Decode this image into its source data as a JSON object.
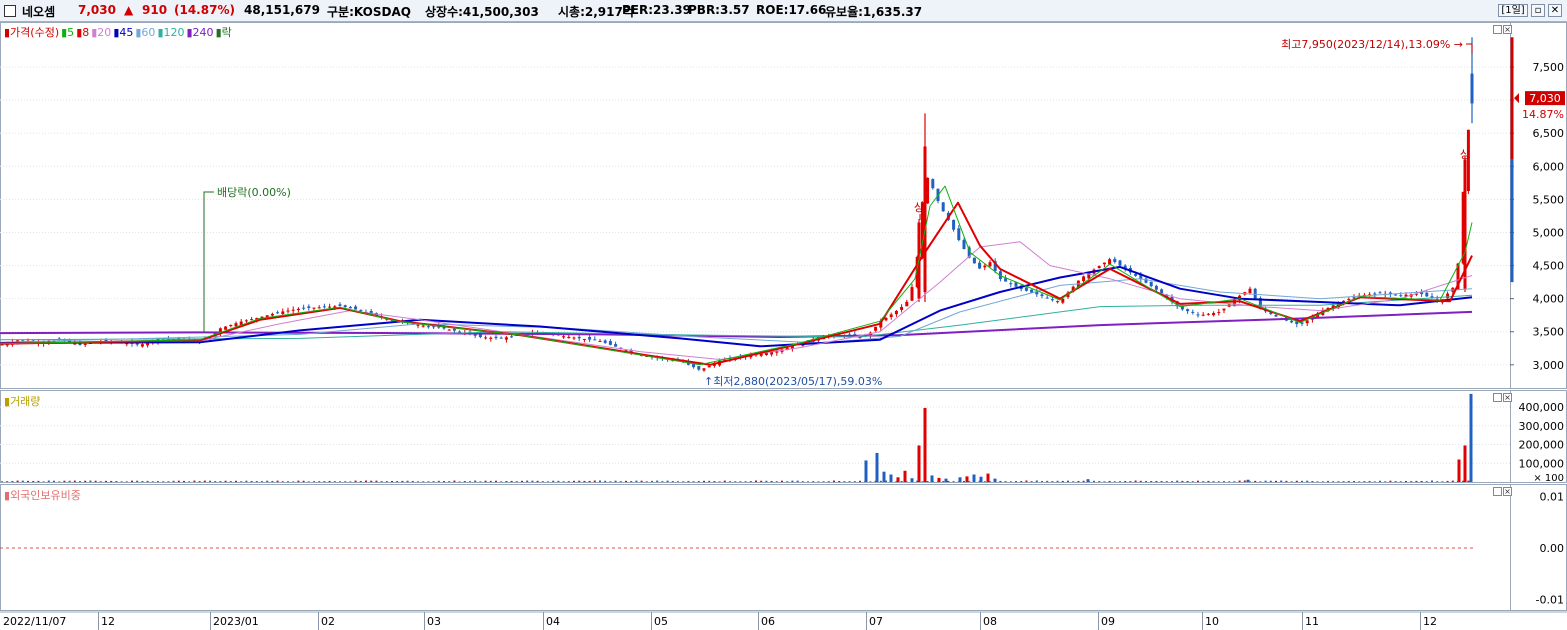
{
  "header": {
    "name": "네오셈",
    "price": "7,030",
    "change_arrow": "▲",
    "change": "910",
    "change_pct": "(14.87%)",
    "volume": "48,151,679",
    "market": "구분:KOSDAQ",
    "shares": "상장수:41,500,303",
    "mcap": "시총:2,917억",
    "per": "PER:23.39",
    "pbr": "PBR:3.57",
    "roe": "ROE:17.66",
    "float": "유보율:1,635.37",
    "period_button": "[1일]",
    "window_buttons": [
      "▫",
      "✕"
    ]
  },
  "price_panel": {
    "legend": [
      {
        "text": "가격(수정)",
        "color": "#d40000"
      },
      {
        "text": "5",
        "color": "#10b010"
      },
      {
        "text": "8",
        "color": "#e00000"
      },
      {
        "text": "20",
        "color": "#d080d0"
      },
      {
        "text": "45",
        "color": "#0000c0"
      },
      {
        "text": "60",
        "color": "#70a8d8"
      },
      {
        "text": "120",
        "color": "#30b0a0"
      },
      {
        "text": "240",
        "color": "#8020c0"
      },
      {
        "text": "락",
        "color": "#207020"
      }
    ],
    "annotations": {
      "high": "최고7,950(2023/12/14),13.09%",
      "low": "최저2,880(2023/05/17),59.03%",
      "dividend": "배당락(0.00%)",
      "upper_limit_1": "상",
      "upper_limit_2": "상"
    },
    "current_price_tag": "7,030",
    "current_pct_tag": "14.87%"
  },
  "volume_panel": {
    "legend": "거래량",
    "unit": "× 100"
  },
  "foreign_panel": {
    "legend": "외국인보유비중"
  },
  "colors": {
    "up": "#e00000",
    "down": "#2060c0",
    "bg": "#ffffff"
  },
  "chart_data": [
    {
      "type": "line",
      "title": "",
      "x_ticks": [
        "2022/11/07",
        "12",
        "2023/01",
        "02",
        "03",
        "04",
        "05",
        "06",
        "07",
        "08",
        "09",
        "10",
        "11",
        "12"
      ],
      "y_ticks": [
        "3,000",
        "3,500",
        "4,000",
        "4,500",
        "5,000",
        "5,500",
        "6,000",
        "6,500",
        "7,000",
        "7,500"
      ],
      "ylim": [
        2650,
        8150
      ],
      "series": [
        {
          "name": "가격(수정)",
          "anchors": [
            [
              0,
              3300
            ],
            [
              20,
              3380
            ],
            [
              40,
              3340
            ],
            [
              60,
              3380
            ],
            [
              80,
              3300
            ],
            [
              100,
              3360
            ],
            [
              120,
              3340
            ],
            [
              140,
              3300
            ],
            [
              160,
              3400
            ],
            [
              180,
              3380
            ],
            [
              200,
              3360
            ],
            [
              210,
              3420
            ],
            [
              220,
              3550
            ],
            [
              240,
              3650
            ],
            [
              260,
              3720
            ],
            [
              280,
              3800
            ],
            [
              300,
              3850
            ],
            [
              320,
              3870
            ],
            [
              340,
              3890
            ],
            [
              360,
              3820
            ],
            [
              380,
              3720
            ],
            [
              400,
              3650
            ],
            [
              420,
              3600
            ],
            [
              440,
              3560
            ],
            [
              460,
              3500
            ],
            [
              480,
              3420
            ],
            [
              500,
              3400
            ],
            [
              520,
              3450
            ],
            [
              540,
              3500
            ],
            [
              560,
              3440
            ],
            [
              580,
              3400
            ],
            [
              600,
              3360
            ],
            [
              620,
              3250
            ],
            [
              640,
              3150
            ],
            [
              660,
              3100
            ],
            [
              680,
              3060
            ],
            [
              700,
              2920
            ],
            [
              720,
              3060
            ],
            [
              740,
              3120
            ],
            [
              760,
              3170
            ],
            [
              780,
              3220
            ],
            [
              800,
              3330
            ],
            [
              820,
              3420
            ],
            [
              840,
              3450
            ],
            [
              860,
              3420
            ],
            [
              870,
              3480
            ],
            [
              880,
              3650
            ],
            [
              900,
              3850
            ],
            [
              910,
              4000
            ],
            [
              918,
              4700
            ],
            [
              925,
              5900
            ],
            [
              932,
              5700
            ],
            [
              940,
              5400
            ],
            [
              950,
              5150
            ],
            [
              960,
              4850
            ],
            [
              970,
              4600
            ],
            [
              980,
              4450
            ],
            [
              990,
              4550
            ],
            [
              1000,
              4300
            ],
            [
              1020,
              4150
            ],
            [
              1040,
              4050
            ],
            [
              1060,
              3950
            ],
            [
              1080,
              4300
            ],
            [
              1100,
              4500
            ],
            [
              1110,
              4600
            ],
            [
              1120,
              4500
            ],
            [
              1140,
              4300
            ],
            [
              1160,
              4100
            ],
            [
              1180,
              3850
            ],
            [
              1200,
              3750
            ],
            [
              1220,
              3800
            ],
            [
              1240,
              4050
            ],
            [
              1250,
              4150
            ],
            [
              1260,
              3850
            ],
            [
              1280,
              3700
            ],
            [
              1300,
              3600
            ],
            [
              1320,
              3800
            ],
            [
              1340,
              3950
            ],
            [
              1360,
              4050
            ],
            [
              1380,
              4080
            ],
            [
              1400,
              4050
            ],
            [
              1420,
              4080
            ],
            [
              1440,
              3950
            ],
            [
              1455,
              4200
            ],
            [
              1460,
              4750
            ],
            [
              1465,
              6100
            ],
            [
              1472,
              7030
            ]
          ]
        },
        {
          "name": "5",
          "anchors": [
            [
              0,
              3320
            ],
            [
              200,
              3380
            ],
            [
              260,
              3700
            ],
            [
              340,
              3870
            ],
            [
              400,
              3650
            ],
            [
              520,
              3450
            ],
            [
              640,
              3150
            ],
            [
              700,
              3000
            ],
            [
              800,
              3330
            ],
            [
              880,
              3660
            ],
            [
              915,
              4300
            ],
            [
              930,
              5400
            ],
            [
              945,
              5700
            ],
            [
              970,
              4700
            ],
            [
              1000,
              4350
            ],
            [
              1060,
              3980
            ],
            [
              1110,
              4520
            ],
            [
              1180,
              3880
            ],
            [
              1240,
              4000
            ],
            [
              1300,
              3640
            ],
            [
              1360,
              4030
            ],
            [
              1440,
              3980
            ],
            [
              1465,
              4700
            ],
            [
              1472,
              5150
            ]
          ]
        },
        {
          "name": "8",
          "anchors": [
            [
              0,
              3320
            ],
            [
              200,
              3370
            ],
            [
              260,
              3680
            ],
            [
              340,
              3860
            ],
            [
              400,
              3660
            ],
            [
              520,
              3450
            ],
            [
              640,
              3160
            ],
            [
              710,
              3000
            ],
            [
              800,
              3320
            ],
            [
              880,
              3620
            ],
            [
              925,
              4700
            ],
            [
              958,
              5450
            ],
            [
              980,
              4800
            ],
            [
              1000,
              4450
            ],
            [
              1060,
              4000
            ],
            [
              1110,
              4450
            ],
            [
              1180,
              3920
            ],
            [
              1240,
              3960
            ],
            [
              1300,
              3660
            ],
            [
              1360,
              4020
            ],
            [
              1450,
              3960
            ],
            [
              1472,
              4650
            ]
          ]
        },
        {
          "name": "20",
          "anchors": [
            [
              0,
              3330
            ],
            [
              200,
              3360
            ],
            [
              280,
              3620
            ],
            [
              350,
              3820
            ],
            [
              420,
              3680
            ],
            [
              520,
              3460
            ],
            [
              640,
              3200
            ],
            [
              720,
              3080
            ],
            [
              800,
              3260
            ],
            [
              880,
              3500
            ],
            [
              940,
              4250
            ],
            [
              980,
              4780
            ],
            [
              1020,
              4860
            ],
            [
              1050,
              4500
            ],
            [
              1110,
              4300
            ],
            [
              1180,
              4000
            ],
            [
              1260,
              3880
            ],
            [
              1320,
              3820
            ],
            [
              1400,
              4000
            ],
            [
              1472,
              4350
            ]
          ]
        },
        {
          "name": "45",
          "anchors": [
            [
              0,
              3330
            ],
            [
              200,
              3340
            ],
            [
              300,
              3520
            ],
            [
              420,
              3680
            ],
            [
              540,
              3580
            ],
            [
              680,
              3400
            ],
            [
              760,
              3280
            ],
            [
              880,
              3380
            ],
            [
              940,
              3820
            ],
            [
              1000,
              4100
            ],
            [
              1060,
              4320
            ],
            [
              1120,
              4480
            ],
            [
              1180,
              4150
            ],
            [
              1240,
              4000
            ],
            [
              1320,
              3950
            ],
            [
              1400,
              3900
            ],
            [
              1472,
              4020
            ]
          ]
        },
        {
          "name": "60",
          "anchors": [
            [
              0,
              3340
            ],
            [
              300,
              3460
            ],
            [
              420,
              3620
            ],
            [
              560,
              3560
            ],
            [
              700,
              3420
            ],
            [
              820,
              3330
            ],
            [
              900,
              3430
            ],
            [
              960,
              3800
            ],
            [
              1060,
              4200
            ],
            [
              1140,
              4300
            ],
            [
              1220,
              4100
            ],
            [
              1320,
              4000
            ],
            [
              1472,
              4150
            ]
          ]
        },
        {
          "name": "120",
          "anchors": [
            [
              0,
              3380
            ],
            [
              300,
              3400
            ],
            [
              500,
              3500
            ],
            [
              700,
              3450
            ],
            [
              860,
              3420
            ],
            [
              960,
              3600
            ],
            [
              1100,
              3880
            ],
            [
              1200,
              3900
            ],
            [
              1320,
              3900
            ],
            [
              1472,
              4050
            ]
          ]
        },
        {
          "name": "240",
          "anchors": [
            [
              0,
              3480
            ],
            [
              200,
              3490
            ],
            [
              400,
              3480
            ],
            [
              600,
              3460
            ],
            [
              780,
              3420
            ],
            [
              900,
              3450
            ],
            [
              1100,
              3600
            ],
            [
              1300,
              3700
            ],
            [
              1472,
              3800
            ]
          ]
        }
      ]
    },
    {
      "type": "bar",
      "title": "",
      "y_ticks": [
        "100,000",
        "200,000",
        "300,000",
        "400,000"
      ],
      "ylim": [
        0,
        480000
      ],
      "spikes": [
        {
          "x": 866,
          "value": 115000,
          "up": false
        },
        {
          "x": 877,
          "value": 155000,
          "up": false
        },
        {
          "x": 884,
          "value": 55000,
          "up": false
        },
        {
          "x": 891,
          "value": 40000,
          "up": false
        },
        {
          "x": 898,
          "value": 25000,
          "up": true
        },
        {
          "x": 905,
          "value": 60000,
          "up": true
        },
        {
          "x": 912,
          "value": 20000,
          "up": false
        },
        {
          "x": 919,
          "value": 195000,
          "up": true
        },
        {
          "x": 925,
          "value": 395000,
          "up": true
        },
        {
          "x": 932,
          "value": 35000,
          "up": false
        },
        {
          "x": 939,
          "value": 22000,
          "up": true
        },
        {
          "x": 946,
          "value": 18000,
          "up": false
        },
        {
          "x": 960,
          "value": 25000,
          "up": false
        },
        {
          "x": 967,
          "value": 30000,
          "up": true
        },
        {
          "x": 974,
          "value": 40000,
          "up": false
        },
        {
          "x": 981,
          "value": 28000,
          "up": false
        },
        {
          "x": 988,
          "value": 45000,
          "up": true
        },
        {
          "x": 995,
          "value": 18000,
          "up": false
        },
        {
          "x": 1088,
          "value": 15000,
          "up": false
        },
        {
          "x": 1248,
          "value": 12000,
          "up": false
        },
        {
          "x": 1459,
          "value": 120000,
          "up": true
        },
        {
          "x": 1465,
          "value": 195000,
          "up": true
        },
        {
          "x": 1471,
          "value": 470000,
          "up": false
        }
      ]
    },
    {
      "type": "line",
      "title": "",
      "y_ticks": [
        "0.01",
        "0.00",
        "-0.01"
      ],
      "ylim": [
        -0.012,
        0.012
      ],
      "series": [
        {
          "values": [
            0,
            0
          ]
        }
      ]
    }
  ]
}
